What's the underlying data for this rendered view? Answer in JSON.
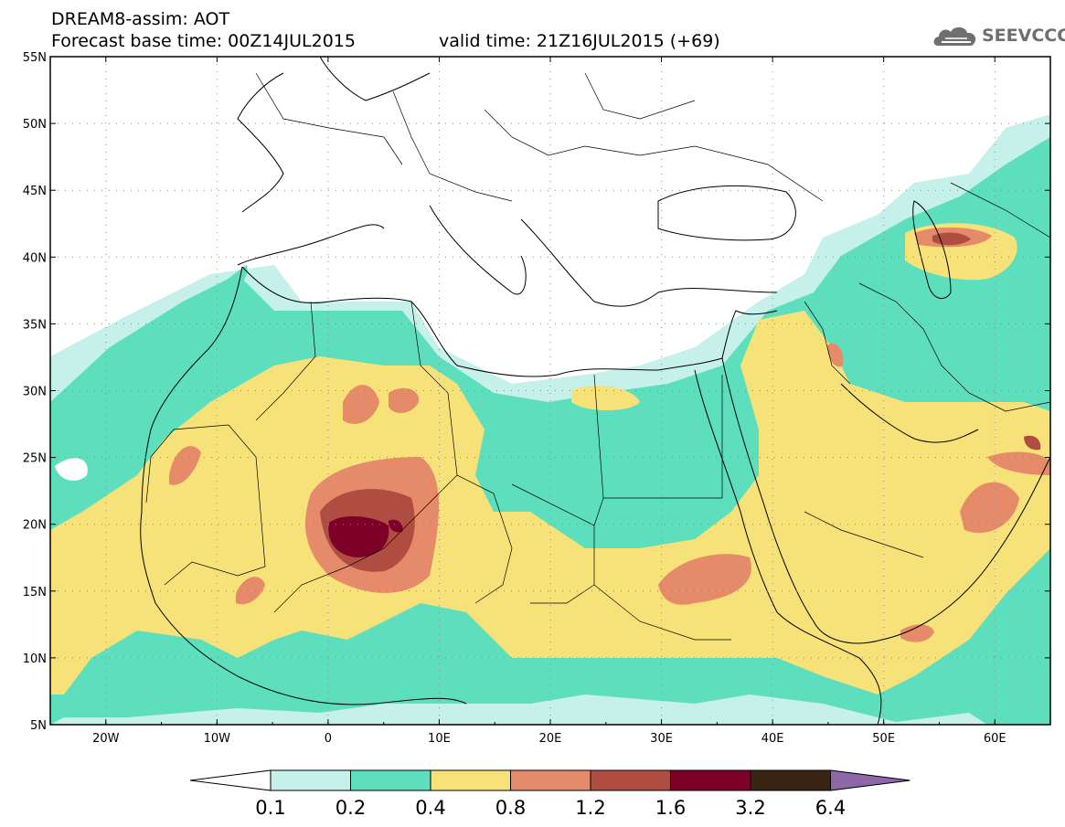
{
  "header": {
    "model_line": "DREAM8-assim: AOT",
    "base_time_line": "Forecast base time: 00Z14JUL2015",
    "valid_time_line": "valid time: 21Z16JUL2015 (+69)"
  },
  "logo": {
    "text": "SEEVCCC",
    "icon": "cloud-icon"
  },
  "map": {
    "lon_range": [
      -25,
      65
    ],
    "lat_range": [
      5,
      55
    ],
    "lat_ticks": [
      {
        "value": 55,
        "label": "55N"
      },
      {
        "value": 50,
        "label": "50N"
      },
      {
        "value": 45,
        "label": "45N"
      },
      {
        "value": 40,
        "label": "40N"
      },
      {
        "value": 35,
        "label": "35N"
      },
      {
        "value": 30,
        "label": "30N"
      },
      {
        "value": 25,
        "label": "25N"
      },
      {
        "value": 20,
        "label": "20N"
      },
      {
        "value": 15,
        "label": "15N"
      },
      {
        "value": 10,
        "label": "10N"
      },
      {
        "value": 5,
        "label": "5N"
      }
    ],
    "lon_ticks": [
      {
        "value": -20,
        "label": "20W"
      },
      {
        "value": -10,
        "label": "10W"
      },
      {
        "value": 0,
        "label": "0"
      },
      {
        "value": 10,
        "label": "10E"
      },
      {
        "value": 20,
        "label": "20E"
      },
      {
        "value": 30,
        "label": "30E"
      },
      {
        "value": 40,
        "label": "40E"
      },
      {
        "value": 50,
        "label": "50E"
      },
      {
        "value": 60,
        "label": "60E"
      }
    ],
    "grid": "dotted"
  },
  "colorbar": {
    "levels": [
      {
        "label": "0.1",
        "color": "#c6f0ea"
      },
      {
        "label": "0.2",
        "color": "#5ddfbd"
      },
      {
        "label": "0.4",
        "color": "#f7e27a"
      },
      {
        "label": "0.8",
        "color": "#e58b69"
      },
      {
        "label": "1.2",
        "color": "#b04d43"
      },
      {
        "label": "1.6",
        "color": "#7d0028"
      },
      {
        "label": "3.2",
        "color": "#3a2414"
      },
      {
        "label": "6.4",
        "color": "#8f66a8"
      }
    ],
    "below_color": "#ffffff"
  }
}
